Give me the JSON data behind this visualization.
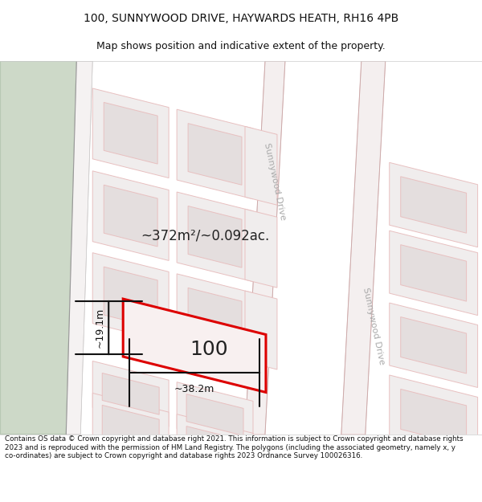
{
  "title_line1": "100, SUNNYWOOD DRIVE, HAYWARDS HEATH, RH16 4PB",
  "title_line2": "Map shows position and indicative extent of the property.",
  "footer_text": "Contains OS data © Crown copyright and database right 2021. This information is subject to Crown copyright and database rights 2023 and is reproduced with the permission of HM Land Registry. The polygons (including the associated geometry, namely x, y co-ordinates) are subject to Crown copyright and database rights 2023 Ordnance Survey 100026316.",
  "map_bg": "#f9f5f5",
  "plot_bg": "#f0eded",
  "building_fill": "#e4dede",
  "building_stroke": "#e8c0c0",
  "road_fill": "#f4efef",
  "road_stroke": "#e8c0c0",
  "green_fill": "#cdd9c8",
  "path_fill": "#f0eeee",
  "highlight_fill": "#f8f0f0",
  "highlight_stroke": "#dd0000",
  "dim_color": "#111111",
  "text_color": "#222222",
  "road_label_color": "#aaaaaa",
  "area_text": "~372m²/~0.092ac.",
  "label_100": "100",
  "dim_width": "~38.2m",
  "dim_height": "~19.1m",
  "road_name": "Sunnywood Drive",
  "title_fontsize": 10,
  "subtitle_fontsize": 9,
  "footer_fontsize": 6.3
}
